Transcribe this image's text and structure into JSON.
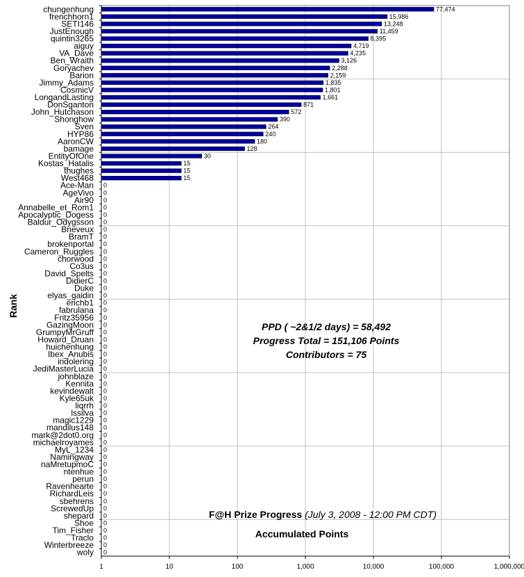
{
  "chart_data": {
    "type": "bar",
    "orientation": "horizontal",
    "x_scale": "log",
    "xlim": [
      1,
      1000000
    ],
    "x_ticks": [
      "1",
      "10",
      "100",
      "1,000",
      "10,000",
      "100,000",
      "1,000,000"
    ],
    "grid": true,
    "ylabel": "Rank",
    "bar_color": "#0000a0",
    "title_bold": "F@H Prize Progress",
    "title_italic": "(July 3, 2008 - 12:00 PM CDT)",
    "subtitle": "Accumulated Points",
    "annotations": [
      "PPD ( ~2&1/2 days) = 58,492",
      "Progress Total = 151,106 Points",
      "Contributors = 75"
    ],
    "categories": [
      "chungenhung",
      "frenchhorn1",
      "SETI146",
      "JustEnough",
      "quintin3265",
      "aiguy",
      "VA_Dave",
      "Ben_Wraith",
      "Goryachev",
      "Barion",
      "Jimmy_Adams",
      "CosmicV",
      "LongandLasting",
      "DonSganton",
      "John_Hutchason",
      "Shonghow",
      "Sven",
      "HYP86",
      "AaronCW",
      "bamage",
      "EntityOfOne",
      "Kostas_Hatalis",
      "thughes",
      "West468",
      "Ace-Man",
      "AgeVivo",
      "Air90",
      "Annabelle_et_Rom1",
      "Apocalyptic_Dogess",
      "Baldur_Odygsson",
      "Bneveux",
      "BramT",
      "brokenportal",
      "Cameron_Ruggles",
      "chorwood",
      "Co3us",
      "David_Spelts",
      "DidierC",
      "Duke",
      "elyas_gaidin",
      "erichb1",
      "fabrulana",
      "Fritz35956",
      "GazingMoon",
      "GrumpyMrGruff",
      "Howard_Druan",
      "huichenhung",
      "Ibex_Anubis",
      "indolering",
      "JediMasterLucia",
      "johnblaze",
      "Kennita",
      "kevindewalt",
      "Kyle65uk",
      "liqrrh",
      "lssilva",
      "magic1229",
      "mandilus148",
      "mark@2dot0.org",
      "michaelroyames",
      "MyL_1234",
      "Namingway",
      "naMretupmoC",
      "ntenhue",
      "perun",
      "Ravenhearte",
      "RichardLeis",
      "sbehrens",
      "ScrewedUp",
      "shepard",
      "Shoe",
      "Tim_Fisher",
      "Traclo",
      "Winterbreeze",
      "woly"
    ],
    "values": [
      77474,
      15986,
      13248,
      11459,
      8395,
      4719,
      4235,
      3126,
      2288,
      2159,
      1835,
      1801,
      1661,
      871,
      572,
      390,
      264,
      240,
      180,
      128,
      30,
      15,
      15,
      15,
      0,
      0,
      0,
      0,
      0,
      0,
      0,
      0,
      0,
      0,
      0,
      0,
      0,
      0,
      0,
      0,
      0,
      0,
      0,
      0,
      0,
      0,
      0,
      0,
      0,
      0,
      0,
      0,
      0,
      0,
      0,
      0,
      0,
      0,
      0,
      0,
      0,
      0,
      0,
      0,
      0,
      0,
      0,
      0,
      0,
      0,
      0,
      0,
      0,
      0,
      0
    ],
    "value_labels": [
      "77,474",
      "15,986",
      "13,248",
      "11,459",
      "8,395",
      "4,719",
      "4,235",
      "3,126",
      "2,288",
      "2,159",
      "1,835",
      "1,801",
      "1,661",
      "871",
      "572",
      "390",
      "264",
      "240",
      "180",
      "128",
      "30",
      "15",
      "15",
      "15",
      "0",
      "0",
      "0",
      "0",
      "0",
      "0",
      "0",
      "0",
      "0",
      "0",
      "0",
      "0",
      "0",
      "0",
      "0",
      "0",
      "0",
      "0",
      "0",
      "0",
      "0",
      "0",
      "0",
      "0",
      "0",
      "0",
      "0",
      "0",
      "0",
      "0",
      "0",
      "0",
      "0",
      "0",
      "0",
      "0",
      "0",
      "0",
      "0",
      "0",
      "0",
      "0",
      "0",
      "0",
      "0",
      "0",
      "0",
      "0",
      "0",
      "0",
      "0"
    ]
  }
}
